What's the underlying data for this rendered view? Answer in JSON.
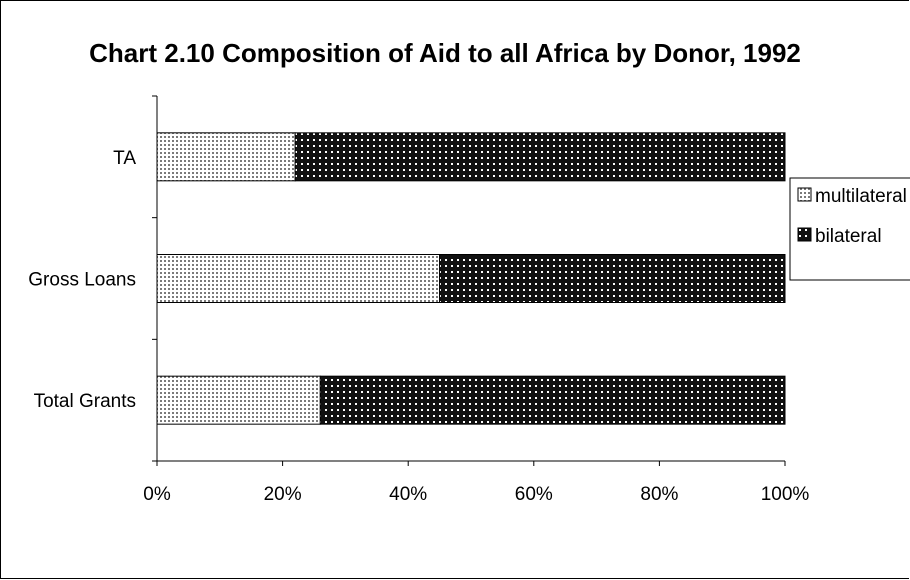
{
  "chart_data": {
    "type": "bar",
    "orientation": "horizontal",
    "stacked": true,
    "normalized_percent": true,
    "title": "Chart 2.10 Composition of Aid to all Africa by Donor, 1992",
    "xlabel": "",
    "ylabel": "",
    "categories": [
      "TA",
      "Gross Loans",
      "Total Grants"
    ],
    "series": [
      {
        "name": "multilateral",
        "values": [
          22,
          45,
          26
        ],
        "pattern": "light-dotted",
        "color": "#d8d8d8"
      },
      {
        "name": "bilateral",
        "values": [
          78,
          55,
          74
        ],
        "pattern": "dark-dotted",
        "color": "#222222"
      }
    ],
    "xlim": [
      0,
      100
    ],
    "x_ticks": [
      "0%",
      "20%",
      "40%",
      "60%",
      "80%",
      "100%"
    ],
    "grid": false,
    "legend_position": "right"
  }
}
